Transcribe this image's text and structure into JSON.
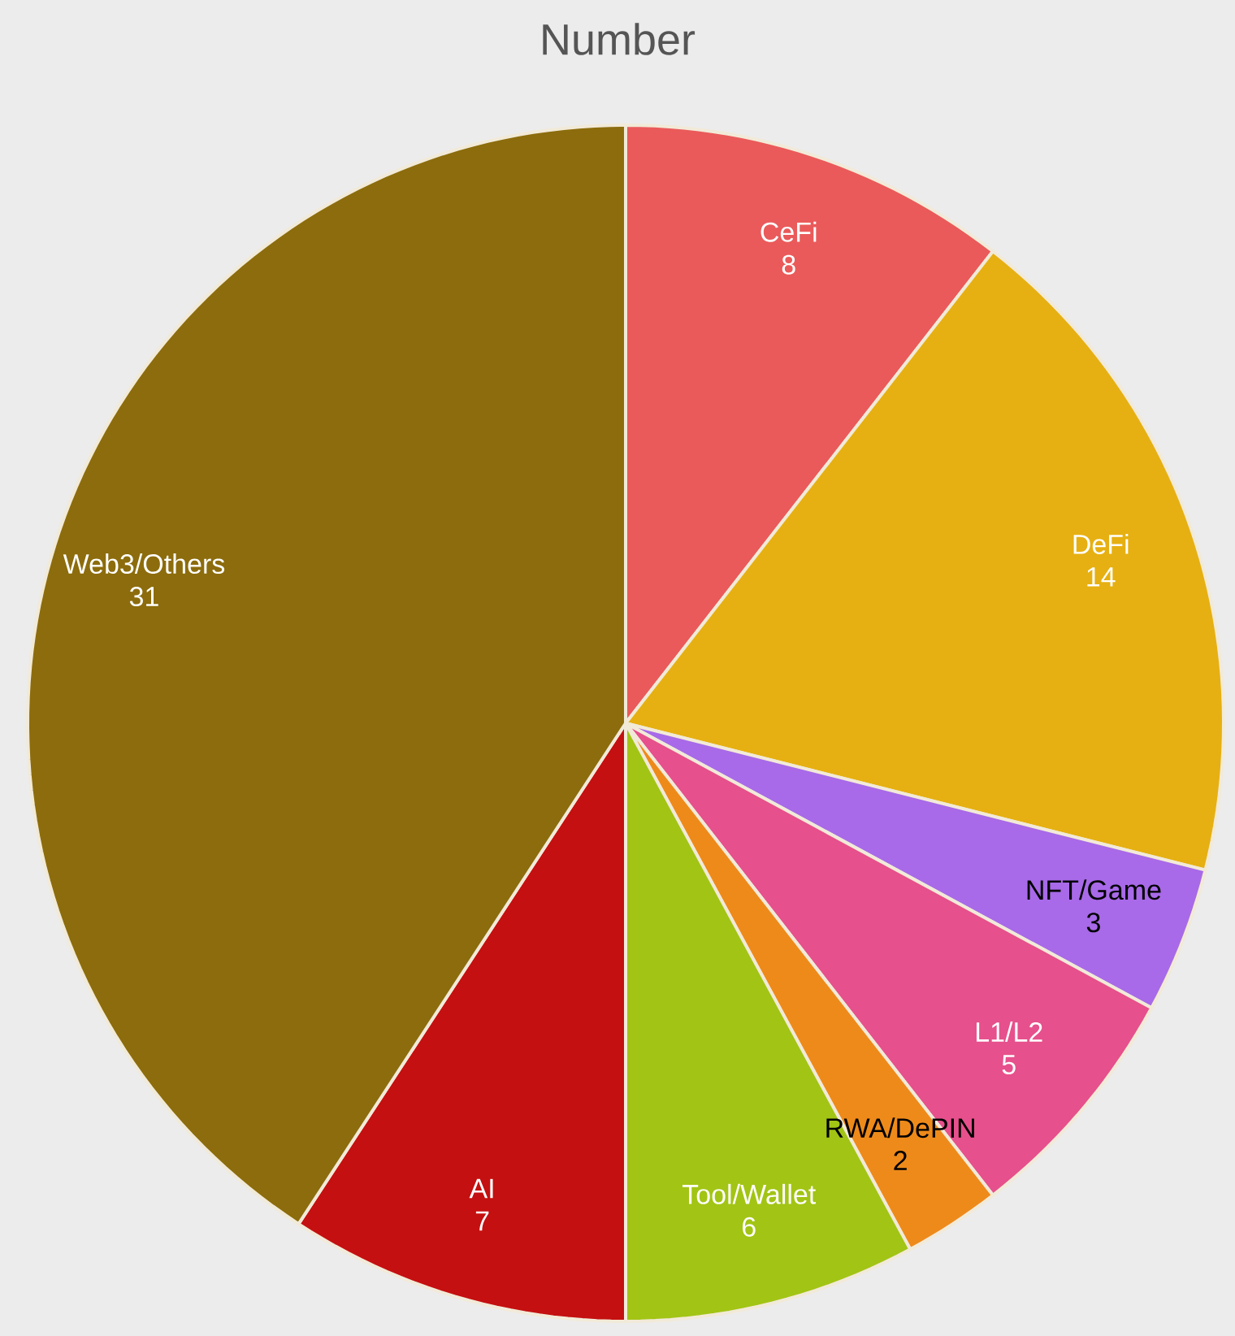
{
  "chart_data": {
    "type": "pie",
    "title": "Number",
    "categories": [
      "CeFi",
      "DeFi",
      "NFT/Game",
      "L1/L2",
      "RWA/DePIN",
      "Tool/Wallet",
      "AI",
      "Web3/Others"
    ],
    "values": [
      8,
      14,
      3,
      5,
      2,
      6,
      7,
      31
    ],
    "colors": [
      "#ea5a5a",
      "#e6b012",
      "#a86ae8",
      "#e6508c",
      "#ee8a1a",
      "#a2c414",
      "#c41010",
      "#8c6c0c"
    ],
    "data_labels": true
  }
}
